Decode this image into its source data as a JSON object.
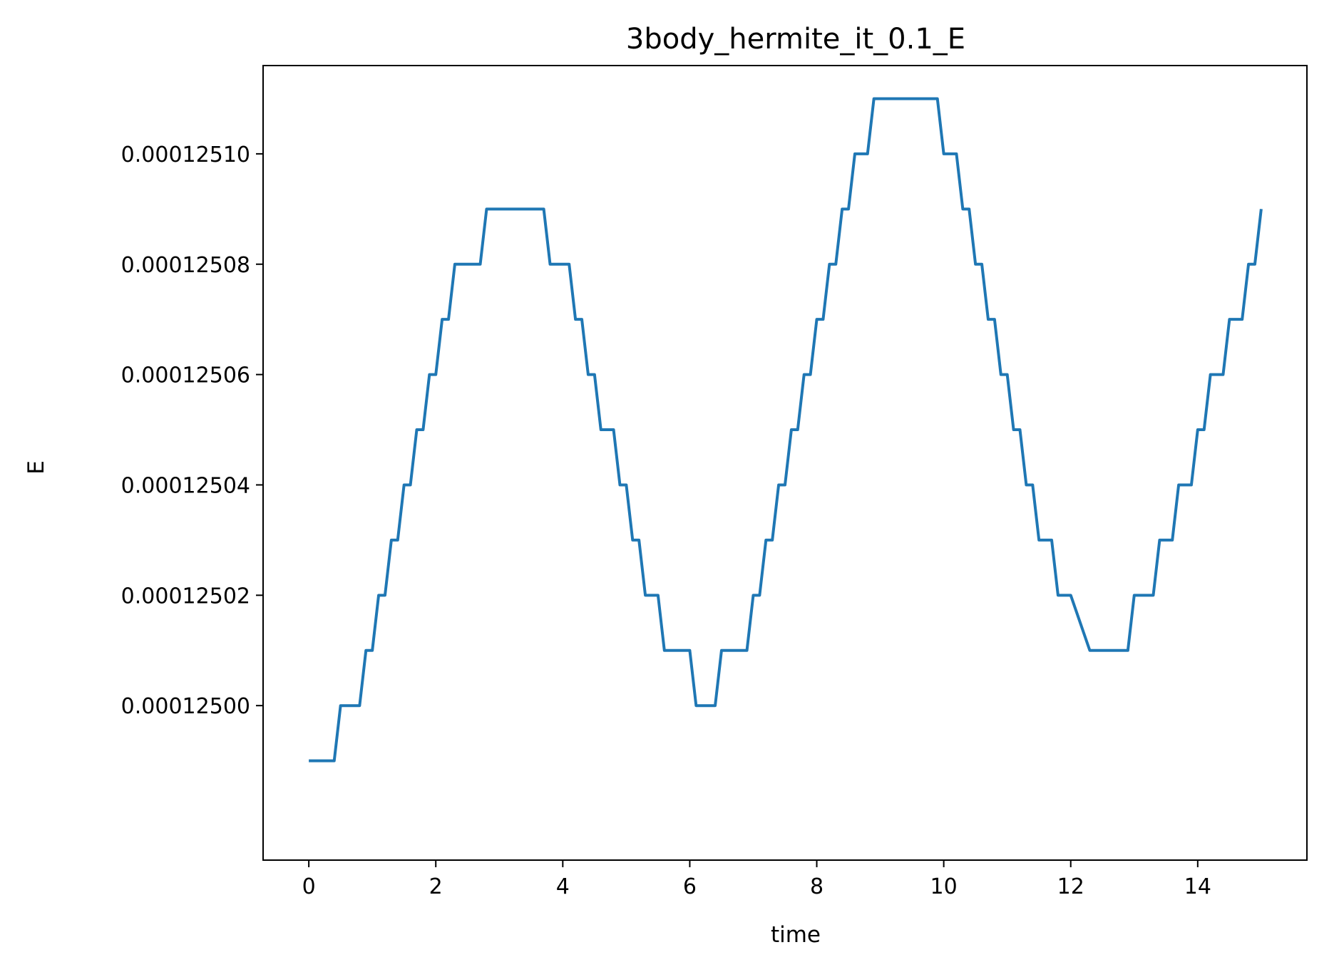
{
  "chart_data": {
    "type": "line",
    "title": "3body_hermite_it_0.1_E",
    "xlabel": "time",
    "ylabel": "E",
    "xlim": [
      -0.72,
      15.72
    ],
    "ylim": [
      0.000124972,
      0.000125116
    ],
    "xticks": [
      0,
      2,
      4,
      6,
      8,
      10,
      12,
      14
    ],
    "xtick_labels": [
      "0",
      "2",
      "4",
      "6",
      "8",
      "10",
      "12",
      "14"
    ],
    "yticks": [
      0.000125,
      0.00012502,
      0.00012504,
      0.00012506,
      0.00012508,
      0.0001251
    ],
    "ytick_labels": [
      "0.00012500",
      "0.00012502",
      "0.00012504",
      "0.00012506",
      "0.00012508",
      "0.00012510"
    ],
    "grid": false,
    "series": [
      {
        "color": "#1f77b4",
        "x": [
          0,
          0.4,
          0.5,
          0.8,
          0.9,
          1.0,
          1.1,
          1.2,
          1.3,
          1.4,
          1.5,
          1.6,
          1.7,
          1.8,
          1.9,
          2.0,
          2.1,
          2.2,
          2.3,
          2.4,
          2.5,
          2.7,
          2.8,
          3.7,
          3.8,
          4.1,
          4.2,
          4.3,
          4.4,
          4.5,
          4.6,
          4.8,
          4.9,
          5.0,
          5.1,
          5.2,
          5.3,
          5.5,
          5.6,
          6.0,
          6.1,
          6.4,
          6.5,
          6.9,
          7.0,
          7.1,
          7.2,
          7.3,
          7.4,
          7.5,
          7.6,
          7.7,
          7.8,
          7.9,
          8.0,
          8.1,
          8.2,
          8.3,
          8.4,
          8.5,
          8.6,
          8.7,
          8.8,
          8.9,
          9.0,
          9.9,
          10.0,
          10.2,
          10.3,
          10.4,
          10.5,
          10.6,
          10.7,
          10.8,
          10.9,
          11.0,
          11.1,
          11.2,
          11.3,
          11.4,
          11.5,
          11.7,
          11.8,
          11.9,
          12.0,
          12.3,
          12.4,
          12.9,
          13.0,
          13.3,
          13.4,
          13.6,
          13.7,
          13.9,
          14.0,
          14.1,
          14.2,
          14.4,
          14.5,
          14.7,
          14.8,
          14.9,
          15.0
        ],
        "y": [
          0.00012499,
          0.00012499,
          0.000125,
          0.000125,
          0.00012501,
          0.00012501,
          0.00012502,
          0.00012502,
          0.00012503,
          0.00012503,
          0.00012504,
          0.00012504,
          0.00012505,
          0.00012505,
          0.00012506,
          0.00012506,
          0.00012507,
          0.00012507,
          0.00012508,
          0.00012508,
          0.00012508,
          0.00012508,
          0.00012509,
          0.00012509,
          0.00012508,
          0.00012508,
          0.00012507,
          0.00012507,
          0.00012506,
          0.00012506,
          0.00012505,
          0.00012505,
          0.00012504,
          0.00012504,
          0.00012503,
          0.00012503,
          0.00012502,
          0.00012502,
          0.00012501,
          0.00012501,
          0.000125,
          0.000125,
          0.00012501,
          0.00012501,
          0.00012502,
          0.00012502,
          0.00012503,
          0.00012503,
          0.00012504,
          0.00012504,
          0.00012505,
          0.00012505,
          0.00012506,
          0.00012506,
          0.00012507,
          0.00012507,
          0.00012508,
          0.00012508,
          0.00012509,
          0.00012509,
          0.0001251,
          0.0001251,
          0.0001251,
          0.00012511,
          0.00012511,
          0.00012511,
          0.0001251,
          0.0001251,
          0.00012509,
          0.00012509,
          0.00012508,
          0.00012508,
          0.00012507,
          0.00012507,
          0.00012506,
          0.00012506,
          0.00012505,
          0.00012505,
          0.00012504,
          0.00012504,
          0.00012503,
          0.00012503,
          0.00012502,
          0.00012502,
          0.00012502,
          0.00012501,
          0.00012501,
          0.00012501,
          0.00012502,
          0.00012502,
          0.00012503,
          0.00012503,
          0.00012504,
          0.00012504,
          0.00012505,
          0.00012505,
          0.00012506,
          0.00012506,
          0.00012507,
          0.00012507,
          0.00012508,
          0.00012508,
          0.00012509
        ]
      }
    ]
  }
}
